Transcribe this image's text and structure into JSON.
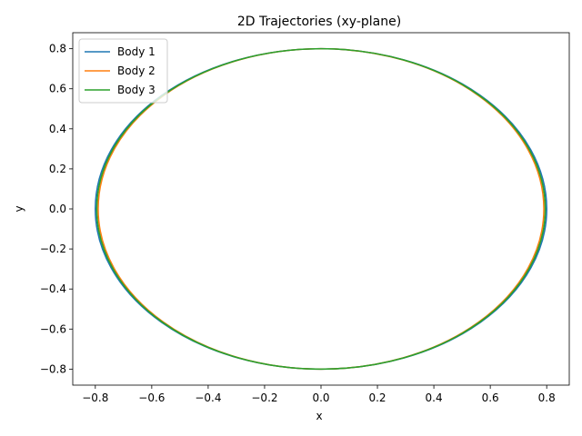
{
  "chart_data": {
    "type": "line",
    "title": "2D Trajectories (xy-plane)",
    "xlabel": "x",
    "ylabel": "y",
    "xlim": [
      -0.88,
      0.88
    ],
    "ylim": [
      -0.88,
      0.88
    ],
    "xticks": [
      -0.8,
      -0.6,
      -0.4,
      -0.2,
      0.0,
      0.2,
      0.4,
      0.6,
      0.8
    ],
    "yticks": [
      -0.8,
      -0.6,
      -0.4,
      -0.2,
      0.0,
      0.2,
      0.4,
      0.6,
      0.8
    ],
    "xtick_labels": [
      "−0.8",
      "−0.6",
      "−0.4",
      "−0.2",
      "0.0",
      "0.2",
      "0.4",
      "0.6",
      "0.8"
    ],
    "ytick_labels": [
      "−0.8",
      "−0.6",
      "−0.4",
      "−0.2",
      "0.0",
      "0.2",
      "0.4",
      "0.6",
      "0.8"
    ],
    "grid": false,
    "legend_position": "top-left",
    "series": [
      {
        "name": "Body 1",
        "color": "#1f77b4",
        "shape": "ellipse",
        "rx": 0.8,
        "ry": 0.8
      },
      {
        "name": "Body 2",
        "color": "#ff7f0e",
        "shape": "ellipse",
        "rx": 0.79,
        "ry": 0.8
      },
      {
        "name": "Body 3",
        "color": "#2ca02c",
        "shape": "ellipse",
        "rx": 0.795,
        "ry": 0.8
      }
    ]
  }
}
